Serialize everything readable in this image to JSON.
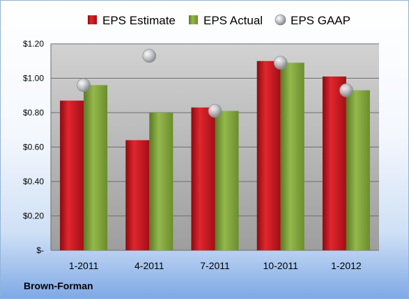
{
  "company": "Brown-Forman",
  "chart_data": {
    "type": "bar",
    "categories": [
      "1-2011",
      "4-2011",
      "7-2011",
      "10-2011",
      "1-2012"
    ],
    "series": [
      {
        "name": "EPS Estimate",
        "kind": "bar",
        "color": "#c0141b",
        "values": [
          0.87,
          0.64,
          0.83,
          1.1,
          1.01
        ]
      },
      {
        "name": "EPS Actual",
        "kind": "bar",
        "color": "#7fa23a",
        "values": [
          0.96,
          0.8,
          0.81,
          1.09,
          0.93
        ]
      },
      {
        "name": "EPS GAAP",
        "kind": "marker",
        "color": "#a6aab0",
        "values": [
          0.96,
          1.13,
          0.81,
          1.09,
          0.93
        ]
      }
    ],
    "yticks": [
      "$-",
      "$0.20",
      "$0.40",
      "$0.60",
      "$0.80",
      "$1.00",
      "$1.20"
    ],
    "ylim": [
      0,
      1.2
    ],
    "grid": true,
    "legend": "top"
  }
}
